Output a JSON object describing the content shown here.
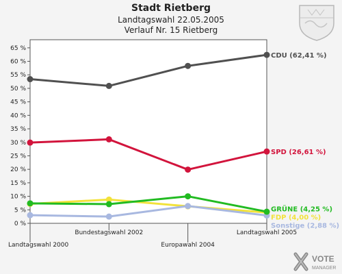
{
  "header": {
    "title": "Stadt Rietberg",
    "subtitle": "Landtagswahl 22.05.2005",
    "subtitle2": "Verlauf Nr. 15 Rietberg"
  },
  "chart_data": {
    "type": "line",
    "categories": [
      "Landtagswahl 2000",
      "Bundestagswahl 2002",
      "Europawahl 2004",
      "Landtagswahl 2005"
    ],
    "ylim": [
      0,
      68
    ],
    "yticks": [
      "0 %",
      "5 %",
      "10 %",
      "15 %",
      "20 %",
      "25 %",
      "30 %",
      "35 %",
      "40 %",
      "45 %",
      "50 %",
      "55 %",
      "60 %",
      "65 %"
    ],
    "grid": false,
    "series": [
      {
        "name": "FDP",
        "color": "#f2e23a",
        "values": [
          7.2,
          8.8,
          6.3,
          4.0
        ],
        "end_label": "FDP (4,00 %)"
      },
      {
        "name": "Sonstige",
        "color": "#a8b8e0",
        "values": [
          3.0,
          2.5,
          6.4,
          2.9
        ],
        "end_label": "Sonstige (2,88 %)"
      },
      {
        "name": "GRÜNE",
        "color": "#22bb22",
        "values": [
          7.4,
          7.1,
          10.0,
          4.3
        ],
        "end_label": "GRÜNE (4,25 %)"
      },
      {
        "name": "SPD",
        "color": "#d2143c",
        "values": [
          29.9,
          31.1,
          19.9,
          26.6
        ],
        "end_label": "SPD (26,61 %)"
      },
      {
        "name": "CDU",
        "color": "#505050",
        "values": [
          53.4,
          50.9,
          58.3,
          62.4
        ],
        "end_label": "CDU (62,41 %)"
      }
    ]
  },
  "branding": {
    "logo_text": "VOTE",
    "logo_sub": "MANAGER"
  }
}
